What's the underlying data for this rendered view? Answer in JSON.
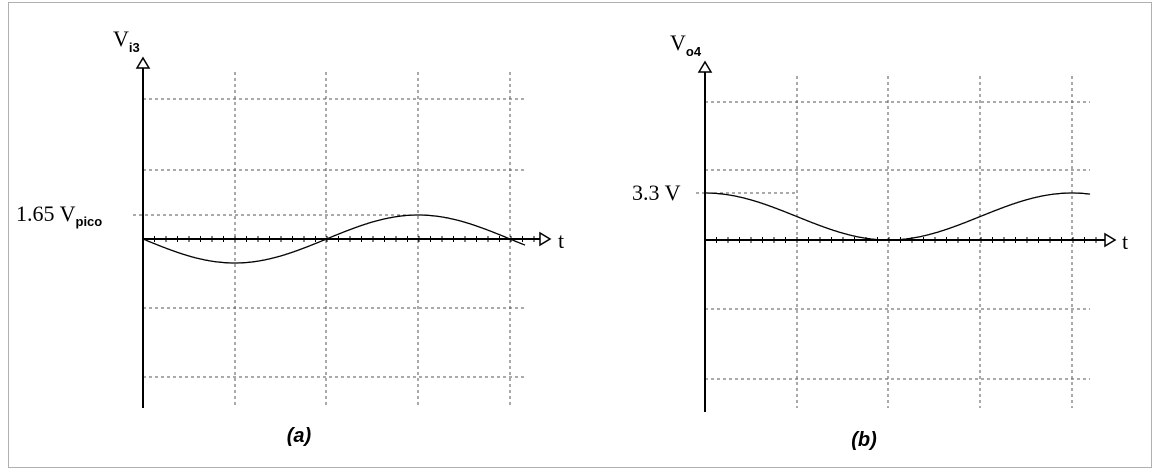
{
  "panel_a": {
    "y_axis_label": "V",
    "y_axis_subscript": "i3",
    "x_axis_label": "t",
    "peak_label": "1.65 V",
    "peak_label_subscript": "pico",
    "caption": "(a)",
    "curve": {
      "amplitude": 1.65,
      "offset": 0,
      "phase_deg": 180,
      "cycles": 1
    }
  },
  "panel_b": {
    "y_axis_label": "V",
    "y_axis_subscript": "o4",
    "x_axis_label": "t",
    "peak_label": "3.3 V",
    "caption": "(b)",
    "curve": {
      "amplitude": 1.65,
      "offset": 1.65,
      "phase_deg": 90,
      "cycles": 1
    }
  },
  "colors": {
    "line": "#000000",
    "grid": "#555555",
    "frame": "#b0b0b0"
  }
}
